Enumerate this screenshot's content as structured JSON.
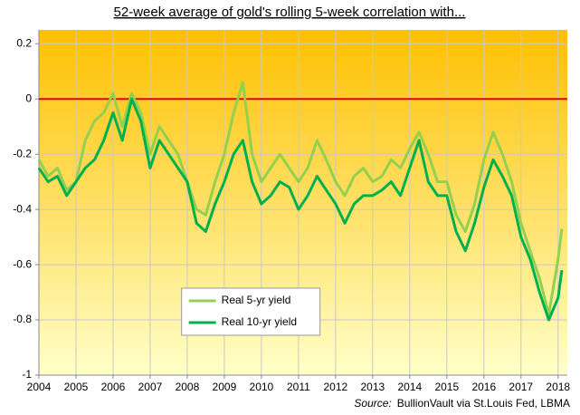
{
  "chart_data": {
    "type": "line",
    "title": "52-week average of gold's rolling 5-week correlation with...",
    "source_label": "Source:",
    "source": "BullionVault via St.Louis Fed, LBMA",
    "xlim": [
      2004,
      2018.25
    ],
    "xticks": [
      2004,
      2005,
      2006,
      2007,
      2008,
      2009,
      2010,
      2011,
      2012,
      2013,
      2014,
      2015,
      2016,
      2017,
      2018
    ],
    "ylim": [
      -1,
      0.25
    ],
    "yticks": [
      -1,
      -0.8,
      -0.6,
      -0.4,
      -0.2,
      0,
      0.2
    ],
    "grid": true,
    "legend": "lower center",
    "reference_line": {
      "value": 0,
      "color": "#e00000"
    },
    "background": [
      "#ffc000",
      "#ffffc8"
    ],
    "x": [
      2004,
      2004.25,
      2004.5,
      2004.75,
      2005,
      2005.25,
      2005.5,
      2005.75,
      2006,
      2006.25,
      2006.5,
      2006.75,
      2007,
      2007.25,
      2007.5,
      2007.75,
      2008,
      2008.25,
      2008.5,
      2008.75,
      2009,
      2009.25,
      2009.5,
      2009.75,
      2010,
      2010.25,
      2010.5,
      2010.75,
      2011,
      2011.25,
      2011.5,
      2011.75,
      2012,
      2012.25,
      2012.5,
      2012.75,
      2013,
      2013.25,
      2013.5,
      2013.75,
      2014,
      2014.25,
      2014.5,
      2014.75,
      2015,
      2015.25,
      2015.5,
      2015.75,
      2016,
      2016.25,
      2016.5,
      2016.75,
      2017,
      2017.25,
      2017.5,
      2017.75,
      2018,
      2018.1
    ],
    "series": [
      {
        "name": "Real 5-yr yield",
        "color": "#92d050",
        "values": [
          -0.22,
          -0.28,
          -0.25,
          -0.33,
          -0.3,
          -0.15,
          -0.08,
          -0.05,
          0.02,
          -0.1,
          0.02,
          -0.05,
          -0.2,
          -0.1,
          -0.15,
          -0.2,
          -0.3,
          -0.4,
          -0.42,
          -0.3,
          -0.2,
          -0.05,
          0.06,
          -0.2,
          -0.3,
          -0.25,
          -0.2,
          -0.25,
          -0.3,
          -0.25,
          -0.15,
          -0.22,
          -0.3,
          -0.35,
          -0.28,
          -0.25,
          -0.3,
          -0.28,
          -0.22,
          -0.25,
          -0.18,
          -0.12,
          -0.2,
          -0.3,
          -0.3,
          -0.42,
          -0.48,
          -0.38,
          -0.22,
          -0.12,
          -0.2,
          -0.3,
          -0.45,
          -0.55,
          -0.65,
          -0.78,
          -0.58,
          -0.47
        ]
      },
      {
        "name": "Real 10-yr yield",
        "color": "#00b050",
        "values": [
          -0.25,
          -0.3,
          -0.28,
          -0.35,
          -0.3,
          -0.25,
          -0.22,
          -0.15,
          -0.05,
          -0.15,
          0.0,
          -0.08,
          -0.25,
          -0.15,
          -0.2,
          -0.25,
          -0.3,
          -0.45,
          -0.48,
          -0.38,
          -0.3,
          -0.2,
          -0.15,
          -0.3,
          -0.38,
          -0.35,
          -0.3,
          -0.32,
          -0.4,
          -0.35,
          -0.28,
          -0.33,
          -0.38,
          -0.45,
          -0.38,
          -0.35,
          -0.35,
          -0.33,
          -0.3,
          -0.35,
          -0.25,
          -0.15,
          -0.3,
          -0.35,
          -0.35,
          -0.48,
          -0.55,
          -0.45,
          -0.32,
          -0.22,
          -0.28,
          -0.35,
          -0.5,
          -0.58,
          -0.7,
          -0.8,
          -0.72,
          -0.62
        ]
      }
    ]
  }
}
